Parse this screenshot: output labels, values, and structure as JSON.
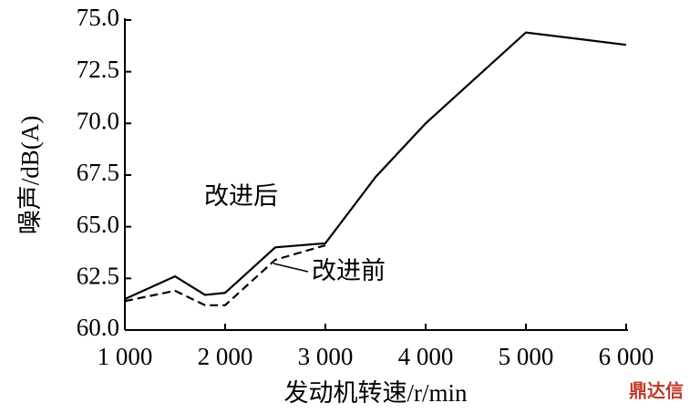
{
  "chart_data": {
    "type": "line",
    "x_label": "发动机转速/r/min",
    "y_label": "噪声/dB(A)",
    "watermark": "鼎达信",
    "xlim": [
      1000,
      6000
    ],
    "xticks": [
      {
        "value": 1000,
        "label": "1 000"
      },
      {
        "value": 2000,
        "label": "2 000"
      },
      {
        "value": 3000,
        "label": "3 000"
      },
      {
        "value": 4000,
        "label": "4 000"
      },
      {
        "value": 5000,
        "label": "5 000"
      },
      {
        "value": 6000,
        "label": "6 000"
      }
    ],
    "ylim": [
      60,
      75
    ],
    "yticks": [
      {
        "value": 60,
        "label": "60.0"
      },
      {
        "value": 62.5,
        "label": "62.5"
      },
      {
        "value": 65,
        "label": "65.0"
      },
      {
        "value": 67.5,
        "label": "67.5"
      },
      {
        "value": 70,
        "label": "70.0"
      },
      {
        "value": 72.5,
        "label": "72.5"
      },
      {
        "value": 75,
        "label": "75.0"
      }
    ],
    "series": [
      {
        "name": "改进后",
        "color": "#000000",
        "dash": false,
        "x": [
          1000,
          1500,
          1800,
          2000,
          2500,
          3000,
          3500,
          4000,
          5000,
          6000
        ],
        "values": [
          61.5,
          62.6,
          61.7,
          61.8,
          64.0,
          64.2,
          67.4,
          70.0,
          74.4,
          73.8
        ]
      },
      {
        "name": "改进前",
        "color": "#000000",
        "dash": true,
        "x": [
          1000,
          1500,
          1800,
          2000,
          2500,
          3000
        ],
        "values": [
          61.4,
          61.9,
          61.2,
          61.2,
          63.4,
          64.1
        ]
      }
    ]
  }
}
